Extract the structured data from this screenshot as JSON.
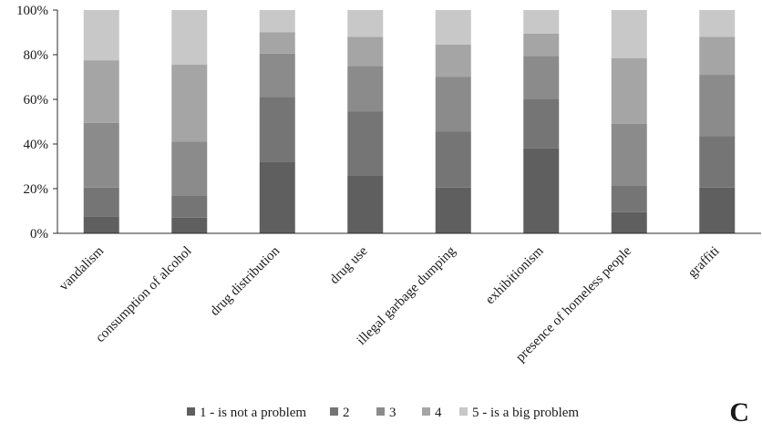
{
  "chart_data": {
    "type": "bar",
    "stacked": true,
    "percent": true,
    "title": "",
    "xlabel": "",
    "ylabel": "",
    "ylim": [
      0,
      100
    ],
    "yticks": [
      "0%",
      "20%",
      "40%",
      "60%",
      "80%",
      "100%"
    ],
    "yticks_values": [
      0,
      20,
      40,
      60,
      80,
      100
    ],
    "grid": false,
    "legend_position": "bottom",
    "panel_label": "C",
    "categories": [
      "vandalism",
      "consumption of alcohol",
      "drug distribution",
      "drug use",
      "illegal garbage dumping",
      "exhibitionism",
      "presence of homeless people",
      "graffiti"
    ],
    "series": [
      {
        "name": "1 - is not a problem",
        "color": "#5f5f5f",
        "values": [
          7.5,
          7,
          32,
          26,
          20.5,
          38,
          9.5,
          20.5
        ]
      },
      {
        "name": "2",
        "color": "#757575",
        "values": [
          13,
          10,
          29,
          28.5,
          25,
          22,
          12,
          23
        ]
      },
      {
        "name": "3",
        "color": "#8b8b8b",
        "values": [
          29,
          24,
          19.5,
          20.5,
          24.5,
          19.5,
          27.5,
          27.5
        ]
      },
      {
        "name": "4",
        "color": "#a5a5a5",
        "values": [
          28,
          34.5,
          9.5,
          13,
          14.5,
          10,
          29.5,
          17
        ]
      },
      {
        "name": "5 - is a big problem",
        "color": "#c8c8c8",
        "values": [
          22.5,
          24.5,
          10,
          12,
          15.5,
          10.5,
          21.5,
          12
        ]
      }
    ]
  }
}
